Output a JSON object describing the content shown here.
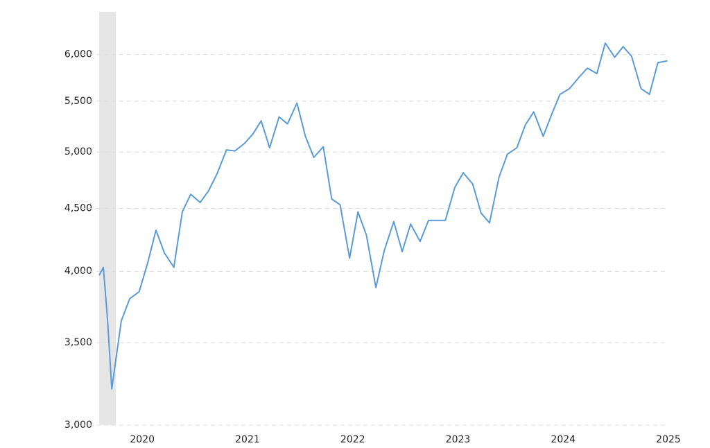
{
  "chart_data": {
    "type": "line",
    "log_scale": true,
    "grid": true,
    "x": [
      2019.59,
      2019.63,
      2019.67,
      2019.71,
      2019.8,
      2019.88,
      2019.97,
      2020.05,
      2020.13,
      2020.21,
      2020.3,
      2020.38,
      2020.46,
      2020.55,
      2020.63,
      2020.71,
      2020.8,
      2020.88,
      2020.97,
      2021.05,
      2021.13,
      2021.21,
      2021.3,
      2021.38,
      2021.47,
      2021.55,
      2021.63,
      2021.72,
      2021.8,
      2021.88,
      2021.97,
      2022.05,
      2022.13,
      2022.22,
      2022.3,
      2022.39,
      2022.47,
      2022.55,
      2022.64,
      2022.72,
      2022.8,
      2022.88,
      2022.97,
      2023.05,
      2023.14,
      2023.22,
      2023.3,
      2023.39,
      2023.47,
      2023.56,
      2023.64,
      2023.72,
      2023.81,
      2023.9,
      2023.97,
      2024.06,
      2024.15,
      2024.23,
      2024.32,
      2024.4,
      2024.49,
      2024.57,
      2024.65,
      2024.74,
      2024.82,
      2024.9,
      2024.99
    ],
    "series": [
      {
        "color": "#5b9bd5",
        "values": [
          3970,
          4030,
          3650,
          3210,
          3645,
          3800,
          3850,
          4060,
          4320,
          4140,
          4030,
          4470,
          4620,
          4550,
          4650,
          4800,
          5020,
          5010,
          5080,
          5170,
          5300,
          5040,
          5340,
          5270,
          5480,
          5150,
          4950,
          5050,
          4580,
          4530,
          4100,
          4470,
          4280,
          3880,
          4160,
          4390,
          4150,
          4370,
          4230,
          4400,
          4400,
          4400,
          4680,
          4810,
          4710,
          4460,
          4380,
          4770,
          4980,
          5040,
          5260,
          5390,
          5150,
          5390,
          5570,
          5630,
          5750,
          5850,
          5790,
          6130,
          5970,
          6090,
          5980,
          5630,
          5570,
          5910,
          5930
        ]
      }
    ],
    "xlim": [
      2019.59,
      2025
    ],
    "xticks": [
      2020,
      2021,
      2022,
      2023,
      2024,
      2025
    ],
    "ylim": [
      3000,
      6500
    ],
    "yticks": [
      {
        "value": 3000,
        "label": "3,000"
      },
      {
        "value": 3500,
        "label": "3,500"
      },
      {
        "value": 4000,
        "label": "4,000"
      },
      {
        "value": 4500,
        "label": "4,500"
      },
      {
        "value": 5000,
        "label": "5,000"
      },
      {
        "value": 5500,
        "label": "5,500"
      },
      {
        "value": 6000,
        "label": "6,000"
      }
    ],
    "shaded_ranges": [
      [
        2019.59,
        2019.75
      ]
    ],
    "shade_color": "#e6e6e6"
  }
}
